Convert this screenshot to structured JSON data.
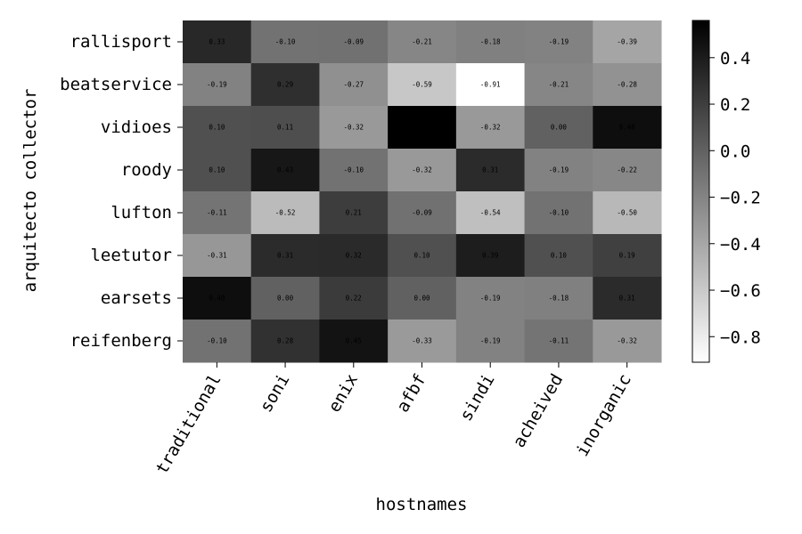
{
  "chart_data": {
    "type": "heatmap",
    "title": "",
    "xlabel": "hostnames",
    "ylabel": "arquitecto collector",
    "x_categories": [
      "traditional",
      "soni",
      "enix",
      "afbf",
      "sindi",
      "acheived",
      "inorganic"
    ],
    "y_categories": [
      "rallisport",
      "beatservice",
      "vidioes",
      "roody",
      "lufton",
      "leetutor",
      "earsets",
      "reifenberg"
    ],
    "values": [
      [
        0.33,
        -0.1,
        -0.09,
        -0.21,
        -0.18,
        -0.19,
        -0.39
      ],
      [
        -0.19,
        0.29,
        -0.27,
        -0.59,
        -0.91,
        -0.21,
        -0.28
      ],
      [
        0.1,
        0.11,
        -0.32,
        0.56,
        -0.32,
        0.0,
        0.48
      ],
      [
        0.1,
        0.43,
        -0.1,
        -0.32,
        0.31,
        -0.19,
        -0.22
      ],
      [
        -0.11,
        -0.52,
        0.21,
        -0.09,
        -0.54,
        -0.1,
        -0.5
      ],
      [
        -0.31,
        0.31,
        0.32,
        0.1,
        0.39,
        0.1,
        0.19
      ],
      [
        0.48,
        0.0,
        0.22,
        0.0,
        -0.19,
        -0.18,
        0.31
      ],
      [
        -0.1,
        0.28,
        0.45,
        -0.33,
        -0.19,
        -0.11,
        -0.32
      ]
    ],
    "value_labels": [
      [
        "0.33",
        "-0.10",
        "-0.09",
        "-0.21",
        "-0.18",
        "-0.19",
        "-0.39"
      ],
      [
        "-0.19",
        "0.29",
        "-0.27",
        "-0.59",
        "-0.91",
        "-0.21",
        "-0.28"
      ],
      [
        "0.10",
        "0.11",
        "-0.32",
        "0.56",
        "-0.32",
        "0.00",
        "0.48"
      ],
      [
        "0.10",
        "0.43",
        "-0.10",
        "-0.32",
        "0.31",
        "-0.19",
        "-0.22"
      ],
      [
        "-0.11",
        "-0.52",
        "0.21",
        "-0.09",
        "-0.54",
        "-0.10",
        "-0.50"
      ],
      [
        "-0.31",
        "0.31",
        "0.32",
        "0.10",
        "0.39",
        "0.10",
        "0.19"
      ],
      [
        "0.48",
        "0.00",
        "0.22",
        "0.00",
        "-0.19",
        "-0.18",
        "0.31"
      ],
      [
        "-0.10",
        "0.28",
        "0.45",
        "-0.33",
        "-0.19",
        "-0.11",
        "-0.32"
      ]
    ],
    "colormap": "gray_r",
    "color_range": [
      -0.91,
      0.56
    ],
    "colorbar_ticks": [
      0.4,
      0.2,
      0.0,
      -0.2,
      -0.4,
      -0.6,
      -0.8
    ],
    "colorbar_tick_labels": [
      "0.4",
      "0.2",
      "0.0",
      "−0.2",
      "−0.4",
      "−0.6",
      "−0.8"
    ],
    "colorbar_position": "right",
    "grid": false
  }
}
